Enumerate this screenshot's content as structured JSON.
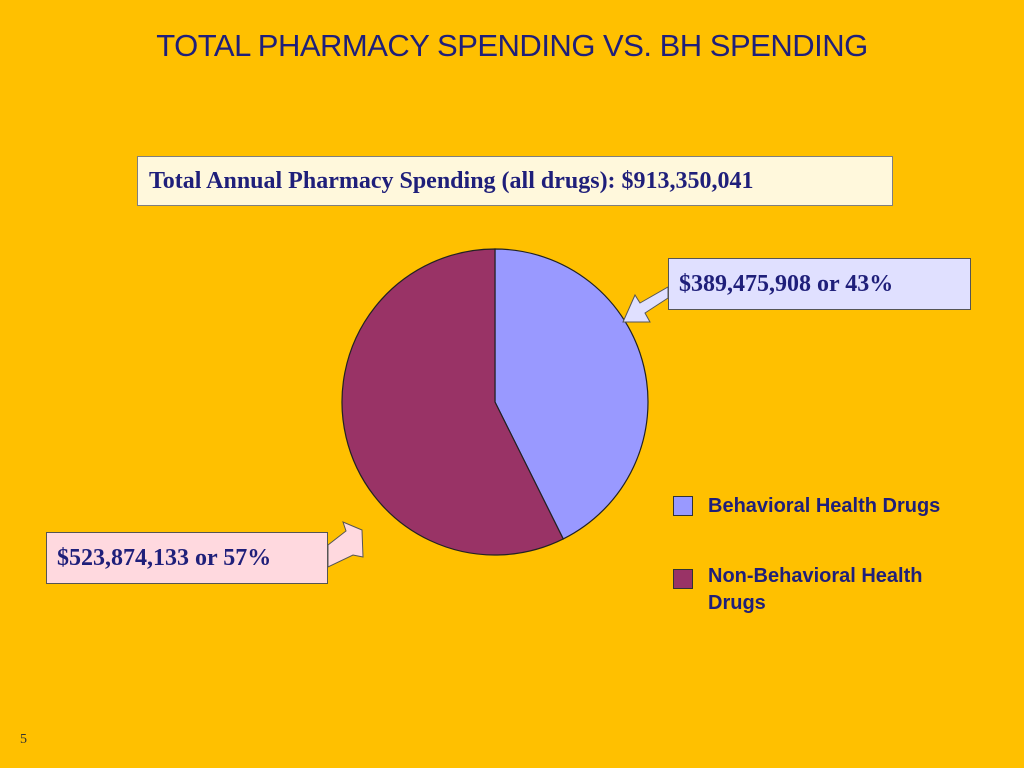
{
  "slide": {
    "title": "TOTAL PHARMACY SPENDING VS. BH SPENDING",
    "total_label": "Total Annual Pharmacy Spending (all drugs): $913,350,041",
    "page_number": "5",
    "background": "#FFC000"
  },
  "callouts": {
    "bh": "$389,475,908 or 43%",
    "nbh": "$523,874,133 or 57%"
  },
  "chart_data": {
    "type": "pie",
    "categories": [
      "Behavioral Health Drugs",
      "Non-Behavioral Health Drugs"
    ],
    "values": [
      389475908,
      523874133
    ],
    "percentages": [
      43,
      57
    ],
    "colors": [
      "#9999FF",
      "#993366"
    ],
    "legend_position": "right"
  },
  "legend": {
    "items": [
      {
        "label": "Behavioral Health Drugs",
        "color": "#9999FF"
      },
      {
        "label": "Non-Behavioral Health Drugs",
        "color": "#993366"
      }
    ]
  }
}
